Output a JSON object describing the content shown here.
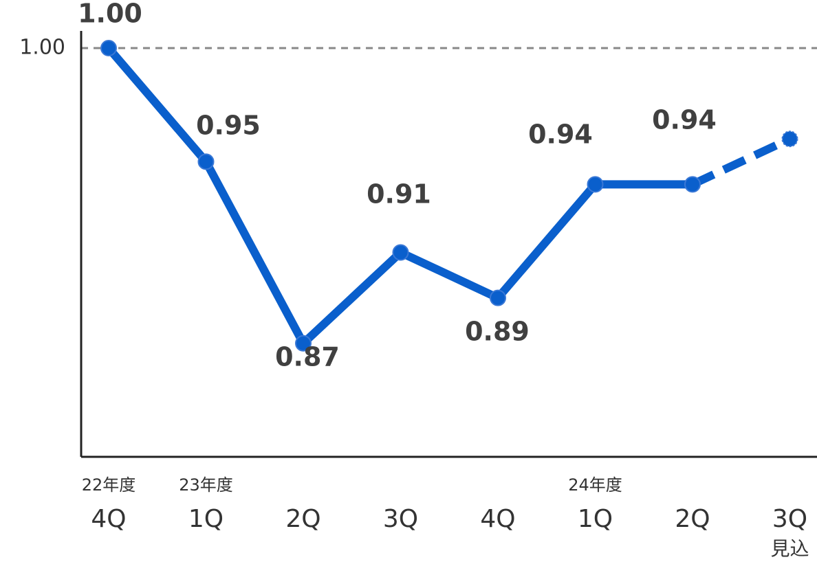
{
  "chart_data": {
    "type": "line",
    "categories": [
      "4Q",
      "1Q",
      "2Q",
      "3Q",
      "4Q",
      "1Q",
      "2Q",
      "3Q"
    ],
    "category_groups": [
      "22年度",
      "23年度",
      null,
      null,
      null,
      "24年度",
      null,
      null
    ],
    "category_notes": [
      null,
      null,
      null,
      null,
      null,
      null,
      null,
      "見込"
    ],
    "series": [
      {
        "color": "#0a5fcc",
        "values": [
          1.0,
          0.95,
          0.87,
          0.91,
          0.89,
          0.94,
          0.94,
          0.96
        ],
        "value_labels": [
          "1.00",
          "0.95",
          "0.87",
          "0.91",
          "0.89",
          "0.94",
          "0.94",
          null
        ]
      }
    ],
    "forecast_from": 6,
    "ylim": [
      0.82,
      1.01
    ],
    "yticks": [
      {
        "value": 1,
        "label": "1.00"
      }
    ],
    "grid": true
  }
}
